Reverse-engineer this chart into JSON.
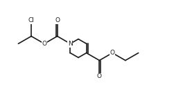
{
  "bg_color": "#ffffff",
  "line_color": "#1a1a1a",
  "line_width": 1.2,
  "font_size": 6.5,
  "figsize": [
    2.64,
    1.32
  ],
  "dpi": 100,
  "xlim": [
    0,
    10
  ],
  "ylim": [
    0,
    5
  ]
}
